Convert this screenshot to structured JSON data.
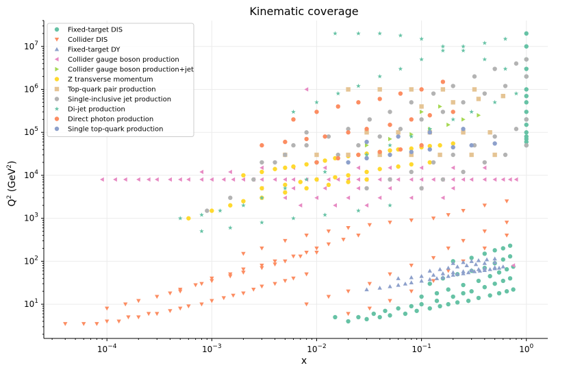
{
  "chart_data": {
    "type": "scatter",
    "title": "Kinematic coverage",
    "xlabel": "x",
    "ylabel_base": "Q",
    "ylabel_sup": "2",
    "ylabel_unit_pre": " (GeV",
    "ylabel_unit_sup": "2",
    "ylabel_unit_post": ")",
    "x_scale": "log",
    "y_scale": "log",
    "xlim": [
      2.5e-05,
      1.6
    ],
    "ylim": [
      1.6,
      40000000
    ],
    "x_ticks": [
      {
        "value": 0.0001,
        "base": "10",
        "exp": "−4"
      },
      {
        "value": 0.001,
        "base": "10",
        "exp": "−3"
      },
      {
        "value": 0.01,
        "base": "10",
        "exp": "−2"
      },
      {
        "value": 0.1,
        "base": "10",
        "exp": "−1"
      },
      {
        "value": 1,
        "base": "10",
        "exp": "0"
      }
    ],
    "y_ticks": [
      {
        "value": 10,
        "base": "10",
        "exp": "1"
      },
      {
        "value": 100,
        "base": "10",
        "exp": "2"
      },
      {
        "value": 1000,
        "base": "10",
        "exp": "3"
      },
      {
        "value": 10000,
        "base": "10",
        "exp": "4"
      },
      {
        "value": 100000,
        "base": "10",
        "exp": "5"
      },
      {
        "value": 1000000,
        "base": "10",
        "exp": "6"
      },
      {
        "value": 10000000,
        "base": "10",
        "exp": "7"
      }
    ],
    "grid": true,
    "legend_position": "top-left",
    "series": [
      {
        "name": "Fixed-target DIS",
        "color": "#66c2a5",
        "marker": "circle",
        "x": [
          0.02,
          0.03,
          0.04,
          0.05,
          0.07,
          0.09,
          0.12,
          0.15,
          0.18,
          0.22,
          0.28,
          0.35,
          0.45,
          0.55,
          0.65,
          0.75,
          0.015,
          0.025,
          0.035,
          0.045,
          0.06,
          0.08,
          0.1,
          0.14,
          0.2,
          0.25,
          0.3,
          0.4,
          0.5,
          0.6,
          0.7,
          0.1,
          0.14,
          0.18,
          0.25,
          0.35,
          0.45,
          0.55,
          0.65,
          0.75,
          0.12,
          0.16,
          0.22,
          0.3,
          0.4,
          0.5,
          0.6,
          0.7,
          0.2,
          0.3,
          0.4,
          0.5,
          0.6,
          0.7,
          1,
          1,
          1,
          1,
          1,
          1,
          1,
          1,
          1,
          1,
          1,
          1,
          1,
          1,
          1,
          1
        ],
        "y": [
          4,
          4.5,
          5,
          5.5,
          6,
          7,
          8,
          9,
          10,
          11,
          12,
          14,
          16,
          18,
          20,
          22,
          5,
          5,
          6,
          7,
          8,
          9,
          10,
          12,
          15,
          18,
          20,
          25,
          30,
          35,
          40,
          15,
          18,
          22,
          28,
          35,
          45,
          55,
          65,
          75,
          30,
          40,
          50,
          60,
          70,
          90,
          110,
          130,
          100,
          120,
          150,
          180,
          200,
          230,
          20000000,
          10000000,
          5000000,
          3000000,
          2000000,
          1000000,
          700000,
          500000,
          300000,
          200000,
          150000,
          100000,
          80000,
          70000,
          60000,
          50000
        ]
      },
      {
        "name": "Collider DIS",
        "color": "#fc8d62",
        "marker": "triangle-down",
        "x": [
          4e-05,
          6e-05,
          8e-05,
          0.0001,
          0.00013,
          0.00016,
          0.0002,
          0.00025,
          0.0003,
          0.0004,
          0.0005,
          0.0006,
          0.0008,
          0.001,
          0.0013,
          0.0016,
          0.002,
          0.0025,
          0.003,
          0.004,
          0.005,
          0.006,
          0.008,
          0.0001,
          0.00015,
          0.0002,
          0.0003,
          0.0004,
          0.0005,
          0.0007,
          0.001,
          0.0015,
          0.002,
          0.003,
          0.004,
          0.005,
          0.007,
          0.01,
          0.0005,
          0.0008,
          0.001,
          0.0015,
          0.002,
          0.003,
          0.004,
          0.006,
          0.008,
          0.01,
          0.013,
          0.018,
          0.025,
          0.002,
          0.003,
          0.005,
          0.008,
          0.013,
          0.02,
          0.032,
          0.05,
          0.08,
          0.13,
          0.18,
          0.25,
          0.4,
          0.65,
          0.008,
          0.013,
          0.02,
          0.032,
          0.05,
          0.08,
          0.13,
          0.18,
          0.25,
          0.4,
          0.65,
          0.02,
          0.032,
          0.05,
          0.08,
          0.13,
          0.18,
          0.25,
          0.4,
          0.65
        ],
        "y": [
          3.5,
          3.5,
          3.5,
          4,
          4,
          5,
          5,
          6,
          6,
          7,
          8,
          9,
          10,
          12,
          14,
          16,
          18,
          22,
          26,
          30,
          35,
          40,
          50,
          8,
          10,
          12,
          15,
          18,
          22,
          28,
          35,
          45,
          55,
          70,
          85,
          100,
          130,
          160,
          20,
          30,
          40,
          50,
          65,
          80,
          100,
          130,
          160,
          200,
          250,
          320,
          400,
          150,
          200,
          300,
          400,
          500,
          600,
          700,
          800,
          900,
          1000,
          1200,
          1500,
          2000,
          2500,
          10,
          15,
          20,
          30,
          50,
          80,
          120,
          200,
          300,
          500,
          800,
          6,
          8,
          12,
          20,
          35,
          60,
          100,
          200,
          400
        ]
      },
      {
        "name": "Fixed-target DY",
        "color": "#8da0cb",
        "marker": "triangle-up",
        "x": [
          0.03,
          0.04,
          0.05,
          0.06,
          0.07,
          0.08,
          0.1,
          0.12,
          0.14,
          0.16,
          0.18,
          0.2,
          0.22,
          0.25,
          0.28,
          0.32,
          0.36,
          0.4,
          0.45,
          0.5,
          0.55,
          0.06,
          0.08,
          0.1,
          0.13,
          0.16,
          0.2,
          0.25,
          0.3,
          0.35,
          0.4,
          0.5,
          0.6,
          0.12,
          0.15,
          0.18,
          0.22,
          0.27,
          0.33,
          0.4,
          0.5,
          0.2,
          0.25,
          0.3,
          0.35,
          0.42,
          0.5
        ],
        "y": [
          22,
          24,
          26,
          28,
          30,
          32,
          35,
          38,
          40,
          42,
          45,
          48,
          50,
          52,
          55,
          58,
          60,
          62,
          65,
          68,
          70,
          40,
          42,
          45,
          48,
          52,
          55,
          58,
          62,
          65,
          68,
          72,
          75,
          60,
          65,
          70,
          75,
          80,
          85,
          90,
          95,
          90,
          95,
          100,
          105,
          110,
          115
        ]
      },
      {
        "name": "Collider gauge boson production",
        "color": "#e78ac3",
        "marker": "triangle-left",
        "x": [
          9e-05,
          0.00012,
          0.00015,
          0.0002,
          0.00025,
          0.0003,
          0.0004,
          0.0005,
          0.0006,
          0.0008,
          0.001,
          0.0013,
          0.0016,
          0.002,
          0.0025,
          0.003,
          0.004,
          0.005,
          0.006,
          0.008,
          0.01,
          0.013,
          0.016,
          0.02,
          0.025,
          0.03,
          0.04,
          0.05,
          0.06,
          0.08,
          0.1,
          0.13,
          0.16,
          0.2,
          0.25,
          0.3,
          0.4,
          0.5,
          0.6,
          0.7,
          0.8,
          0.0008,
          0.0015,
          0.003,
          0.006,
          0.012,
          0.025,
          0.05,
          0.1,
          0.2,
          0.4,
          0.003,
          0.006,
          0.012,
          0.025,
          0.05,
          0.1,
          0.2,
          0.005,
          0.01,
          0.02,
          0.04,
          0.08,
          0.16,
          0.007,
          0.015,
          0.03,
          0.008,
          0.75
        ],
        "y": [
          8000,
          8000,
          8000,
          8000,
          8000,
          8000,
          8000,
          8000,
          8000,
          8000,
          8000,
          8000,
          8000,
          8000,
          8000,
          8000,
          8000,
          8000,
          8000,
          8000,
          8000,
          8000,
          8000,
          8000,
          8000,
          8000,
          8000,
          8000,
          8000,
          8000,
          8000,
          8000,
          8000,
          8000,
          8000,
          8000,
          8000,
          8000,
          8000,
          8000,
          8000,
          12000,
          12000,
          15000,
          15000,
          15000,
          15000,
          15000,
          15000,
          15000,
          15000,
          5000,
          5000,
          5000,
          5000,
          5000,
          5000,
          5000,
          3000,
          3000,
          3000,
          3000,
          3000,
          3000,
          2000,
          2000,
          2000,
          1000000,
          80
        ]
      },
      {
        "name": "Collider gauge boson production+jet",
        "color": "#a6d854",
        "marker": "triangle-right",
        "x": [
          0.03,
          0.05,
          0.08,
          0.12,
          0.18,
          0.25,
          0.35,
          0.1,
          0.15,
          0.2
        ],
        "y": [
          50000,
          70000,
          90000,
          120000,
          150000,
          200000,
          250000,
          300000,
          400000,
          500000
        ]
      },
      {
        "name": "Z transverse momentum",
        "color": "#ffd92f",
        "marker": "circle",
        "x": [
          0.002,
          0.003,
          0.004,
          0.005,
          0.006,
          0.008,
          0.01,
          0.012,
          0.015,
          0.02,
          0.025,
          0.03,
          0.04,
          0.05,
          0.06,
          0.08,
          0.1,
          0.12,
          0.15,
          0.2,
          0.003,
          0.005,
          0.007,
          0.01,
          0.015,
          0.02,
          0.03,
          0.04,
          0.06,
          0.08,
          0.12,
          0.0006,
          0.001,
          0.0015,
          0.002,
          0.003,
          0.005,
          0.008,
          0.013,
          0.02,
          0.03
        ],
        "y": [
          10000,
          12000,
          14000,
          15000,
          16000,
          18000,
          20000,
          22000,
          25000,
          28000,
          30000,
          32000,
          35000,
          38000,
          40000,
          42000,
          45000,
          48000,
          50000,
          55000,
          5000,
          6000,
          7000,
          8000,
          9000,
          10000,
          12000,
          14000,
          16000,
          18000,
          20000,
          1000,
          1500,
          2000,
          2500,
          3000,
          4000,
          5000,
          6000,
          7000,
          8000
        ]
      },
      {
        "name": "Top-quark pair production",
        "color": "#e5c494",
        "marker": "square",
        "x": [
          0.005,
          0.01,
          0.02,
          0.04,
          0.08,
          0.15,
          0.3,
          0.5,
          0.03,
          0.06,
          0.12,
          0.25,
          0.45,
          0.1,
          0.2,
          0.35,
          0.6,
          0.02,
          0.04,
          0.08,
          0.16,
          0.32
        ],
        "y": [
          30000,
          30000,
          30000,
          30000,
          30000,
          30000,
          30000,
          30000,
          100000,
          100000,
          100000,
          100000,
          100000,
          400000,
          500000,
          600000,
          700000,
          1000000,
          1000000,
          1000000,
          1000000,
          1000000
        ]
      },
      {
        "name": "Single-inclusive jet production",
        "color": "#b3b3b3",
        "marker": "circle",
        "x": [
          0.0009,
          0.0015,
          0.0025,
          0.004,
          0.006,
          0.008,
          0.003,
          0.005,
          0.008,
          0.013,
          0.02,
          0.032,
          0.05,
          0.08,
          0.13,
          0.2,
          0.32,
          0.5,
          0.8,
          1,
          0.01,
          0.016,
          0.025,
          0.04,
          0.063,
          0.1,
          0.16,
          0.25,
          0.4,
          0.63,
          1,
          0.03,
          0.05,
          0.08,
          0.13,
          0.2,
          0.32,
          0.5,
          0.8,
          1,
          0.1,
          0.16,
          0.25,
          0.4,
          0.63,
          1
        ],
        "y": [
          1500,
          3000,
          8000,
          20000,
          50000,
          100000,
          20000,
          30000,
          50000,
          80000,
          120000,
          200000,
          300000,
          500000,
          800000,
          1200000,
          2000000,
          3000000,
          4000000,
          5000000,
          20000,
          30000,
          50000,
          80000,
          120000,
          200000,
          300000,
          500000,
          800000,
          1200000,
          2000000,
          5000,
          8000,
          12000,
          20000,
          30000,
          50000,
          80000,
          120000,
          200000,
          5000,
          8000,
          12000,
          20000,
          30000,
          50000
        ]
      },
      {
        "name": "Di-jet production",
        "color": "#66c2a5",
        "marker": "star",
        "x": [
          0.0005,
          0.0008,
          0.0012,
          0.002,
          0.003,
          0.005,
          0.008,
          0.012,
          0.02,
          0.03,
          0.05,
          0.08,
          0.12,
          0.2,
          0.3,
          0.5,
          0.8,
          0.006,
          0.01,
          0.016,
          0.025,
          0.04,
          0.063,
          0.1,
          0.16,
          0.25,
          0.4,
          0.63,
          0.015,
          0.025,
          0.04,
          0.063,
          0.1,
          0.16,
          0.25,
          0.4,
          0.63,
          0.0008,
          0.0015,
          0.003,
          0.006,
          0.012,
          0.025,
          0.05
        ],
        "y": [
          1000,
          1200,
          1500,
          2000,
          3000,
          5000,
          8000,
          12000,
          20000,
          30000,
          50000,
          80000,
          120000,
          200000,
          300000,
          500000,
          800000,
          300000,
          500000,
          800000,
          1200000,
          2000000,
          3000000,
          5000000,
          8000000,
          10000000,
          12000000,
          15000000,
          20000000,
          20000000,
          20000000,
          18000000,
          15000000,
          10000000,
          8000000,
          5000000,
          3000000,
          500,
          600,
          800,
          1000,
          1200,
          1500,
          2000
        ]
      },
      {
        "name": "Direct photon production",
        "color": "#fc8d62",
        "marker": "circle",
        "x": [
          0.003,
          0.005,
          0.008,
          0.012,
          0.02,
          0.03,
          0.05,
          0.08,
          0.12,
          0.2,
          0.006,
          0.01,
          0.016,
          0.025,
          0.04,
          0.063,
          0.1,
          0.16,
          0.01,
          0.016,
          0.025,
          0.04,
          0.063,
          0.1
        ],
        "y": [
          50000,
          60000,
          70000,
          80000,
          100000,
          120000,
          150000,
          200000,
          250000,
          300000,
          200000,
          300000,
          400000,
          500000,
          600000,
          800000,
          1000000,
          1500000,
          20000,
          25000,
          30000,
          35000,
          40000,
          50000
        ]
      },
      {
        "name": "Single top-quark production",
        "color": "#8da0cb",
        "marker": "circle",
        "x": [
          0.02,
          0.03,
          0.05,
          0.08,
          0.12,
          0.2,
          0.3,
          0.5,
          0.03,
          0.06,
          0.12,
          0.25
        ],
        "y": [
          20000,
          25000,
          30000,
          35000,
          40000,
          45000,
          50000,
          55000,
          60000,
          80000,
          100000,
          120000
        ]
      }
    ]
  }
}
